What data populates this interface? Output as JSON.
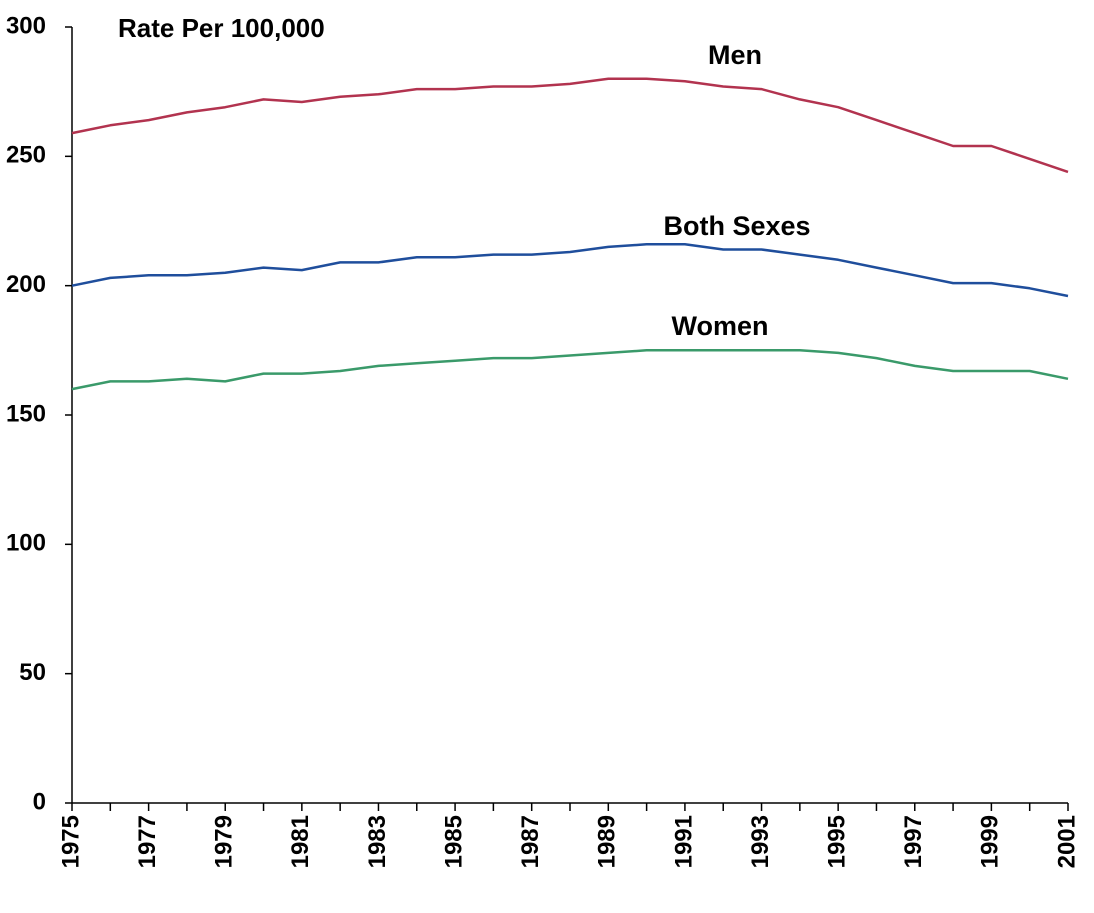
{
  "chart_data": {
    "type": "line",
    "y_axis_label": "Rate Per 100,000",
    "categories": [
      "1975",
      null,
      "1977",
      null,
      "1979",
      null,
      "1981",
      null,
      "1983",
      null,
      "1985",
      null,
      "1987",
      null,
      "1989",
      null,
      "1991",
      null,
      "1993",
      null,
      "1995",
      null,
      "1997",
      null,
      "1999",
      null,
      "2001"
    ],
    "series": [
      {
        "name": "Men",
        "color": "#b2334f",
        "values": [
          259,
          262,
          264,
          267,
          269,
          272,
          271,
          273,
          274,
          276,
          276,
          277,
          277,
          278,
          280,
          280,
          279,
          277,
          276,
          272,
          269,
          264,
          259,
          254,
          254,
          249,
          244
        ]
      },
      {
        "name": "Both Sexes",
        "color": "#1f4e9c",
        "values": [
          200,
          203,
          204,
          204,
          205,
          207,
          206,
          209,
          209,
          211,
          211,
          212,
          212,
          213,
          215,
          216,
          216,
          214,
          214,
          212,
          210,
          207,
          204,
          201,
          201,
          199,
          196
        ]
      },
      {
        "name": "Women",
        "color": "#3a9a6a",
        "values": [
          160,
          163,
          163,
          164,
          163,
          166,
          166,
          167,
          169,
          170,
          171,
          172,
          172,
          173,
          174,
          175,
          175,
          175,
          175,
          175,
          174,
          172,
          169,
          167,
          167,
          167,
          164
        ]
      }
    ],
    "ylim": [
      0,
      300
    ],
    "yticks": [
      0,
      50,
      100,
      150,
      200,
      250,
      300
    ],
    "grid": false
  }
}
